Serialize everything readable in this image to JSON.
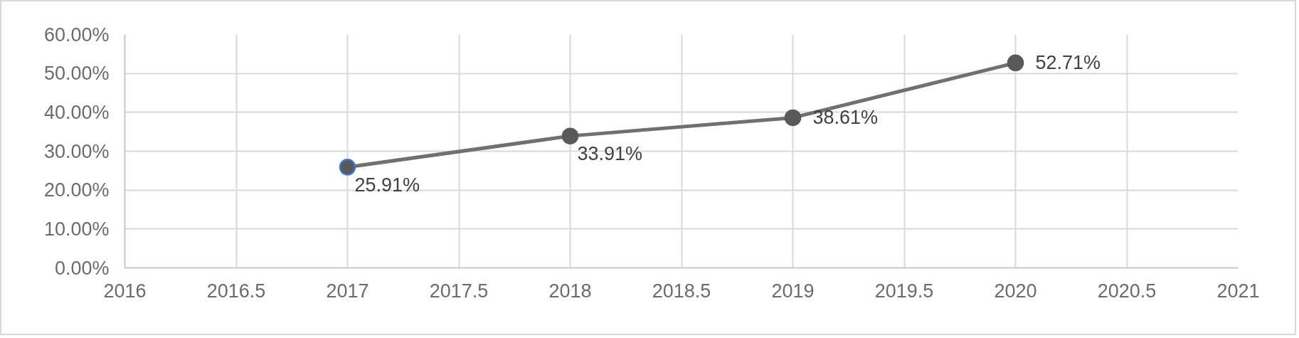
{
  "chart_data": {
    "type": "line",
    "x": [
      2017,
      2018,
      2019,
      2020
    ],
    "series": [
      {
        "color": "#707070",
        "colors": [
          "#4472c4",
          "#595959",
          "#595959",
          "#595959"
        ],
        "values": [
          25.91,
          33.91,
          38.61,
          52.71
        ],
        "value_labels": [
          "25.91%",
          "33.91%",
          "38.61%",
          "52.71%"
        ]
      }
    ],
    "xlim": [
      2016,
      2021
    ],
    "xticks": [
      2016,
      2016.5,
      2017,
      2017.5,
      2018,
      2018.5,
      2019,
      2019.5,
      2020,
      2020.5,
      2021
    ],
    "ylim": [
      0,
      60
    ],
    "yticks": [
      {
        "value": 0,
        "label": "0.00%"
      },
      {
        "value": 10,
        "label": "10.00%"
      },
      {
        "value": 20,
        "label": "20.00%"
      },
      {
        "value": 30,
        "label": "30.00%"
      },
      {
        "value": 40,
        "label": "40.00%"
      },
      {
        "value": 50,
        "label": "50.00%"
      },
      {
        "value": 60,
        "label": "60.00%"
      }
    ],
    "grid": true,
    "marker": "circle",
    "line_style": "solid"
  }
}
